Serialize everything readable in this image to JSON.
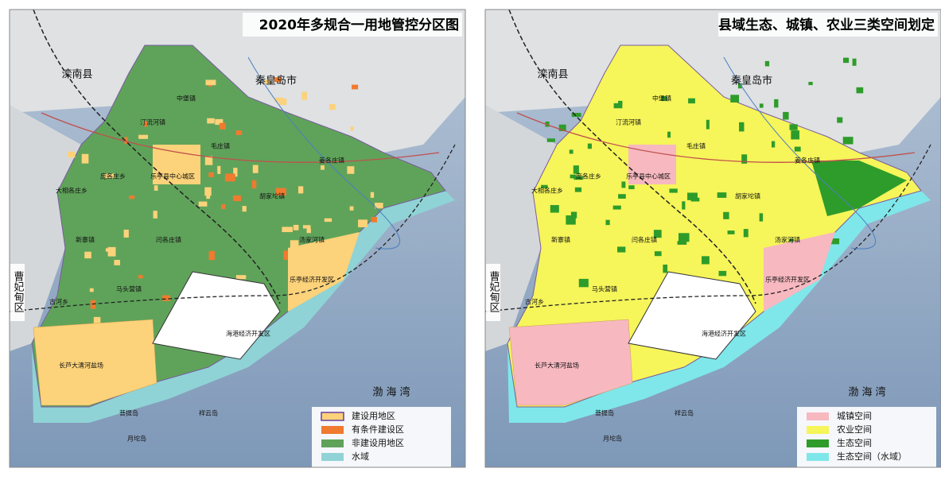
{
  "panels": [
    {
      "title": "2020年多规合一用地管控分区图",
      "places": [
        "滦南县",
        "秦皇岛市",
        "曹妃甸区",
        "渤 海 湾",
        "乐亭县中心城区",
        "乐亭经济开发区",
        "海港经济开发区",
        "长芦大清河盐场",
        "马头营镇",
        "古河乡",
        "汤家河镇",
        "胡家坨镇",
        "姜各庄镇",
        "毛庄镇",
        "中堡镇",
        "汀流河镇",
        "庞各庄乡",
        "大相各庄乡",
        "闫各庄镇",
        "新寨镇",
        "菩提岛",
        "月坨岛",
        "祥云岛"
      ],
      "legend": [
        {
          "label": "建设用地区",
          "color": "#fcd27a"
        },
        {
          "label": "有条件建设区",
          "color": "#f07a2e"
        },
        {
          "label": "非建设用地区",
          "color": "#5fa35a"
        },
        {
          "label": "水域",
          "color": "#8fd3d6"
        }
      ]
    },
    {
      "title": "县域生态、城镇、农业三类空间划定",
      "places": [
        "滦南县",
        "秦皇岛市",
        "曹妃甸区",
        "渤 海 湾",
        "乐亭县中心城区",
        "乐亭经济开发区",
        "海港经济开发区",
        "长芦大清河盐场",
        "马头营镇",
        "古河乡",
        "汤家河镇",
        "胡家坨镇",
        "姜各庄镇",
        "毛庄镇",
        "中堡镇",
        "汀流河镇",
        "庞各庄乡",
        "大相各庄乡",
        "闫各庄镇",
        "新寨镇",
        "菩提岛",
        "月坨岛",
        "祥云岛"
      ],
      "legend": [
        {
          "label": "城镇空间",
          "color": "#f7b8c0"
        },
        {
          "label": "农业空间",
          "color": "#f6f55a"
        },
        {
          "label": "生态空间",
          "color": "#2e9c2a"
        },
        {
          "label": "生态空间（水域）",
          "color": "#7fe7ea"
        }
      ]
    }
  ]
}
